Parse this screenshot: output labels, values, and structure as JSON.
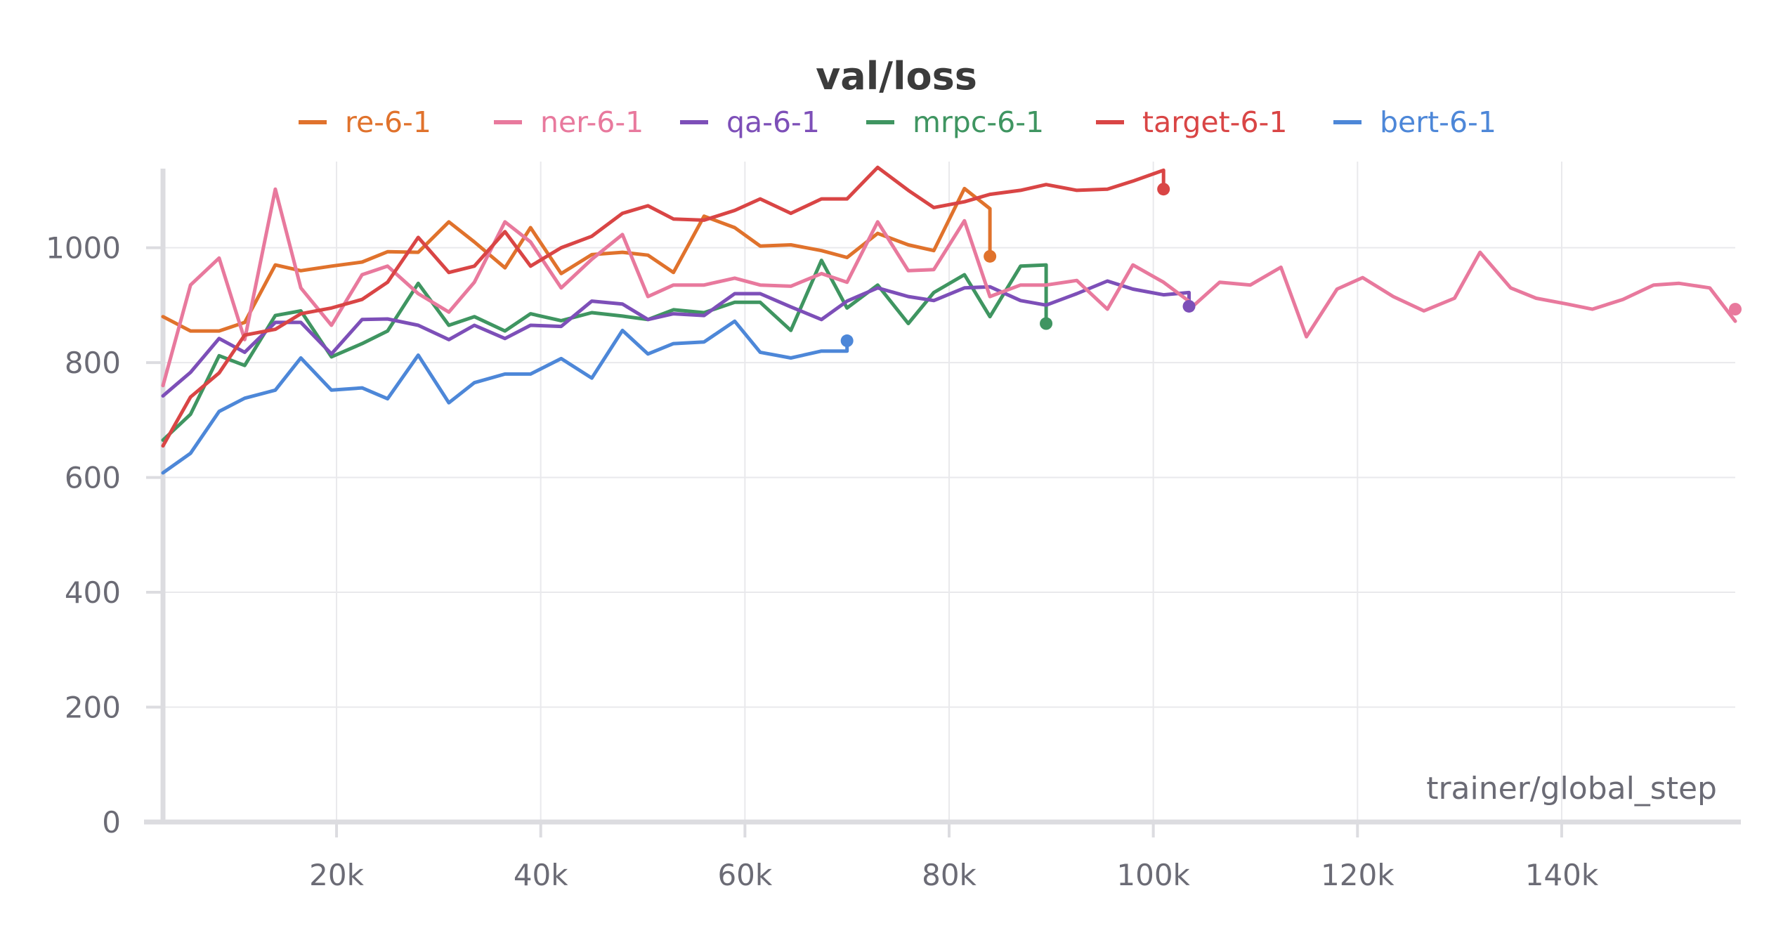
{
  "chart_data": {
    "type": "line",
    "title": "val/loss",
    "xlabel": "trainer/global_step",
    "ylabel": "",
    "xlim": [
      3000,
      157000
    ],
    "ylim": [
      0,
      1150
    ],
    "x_ticks": [
      {
        "value": 20000,
        "label": "20k"
      },
      {
        "value": 40000,
        "label": "40k"
      },
      {
        "value": 60000,
        "label": "60k"
      },
      {
        "value": 80000,
        "label": "80k"
      },
      {
        "value": 100000,
        "label": "100k"
      },
      {
        "value": 120000,
        "label": "120k"
      },
      {
        "value": 140000,
        "label": "140k"
      }
    ],
    "y_ticks": [
      {
        "value": 0,
        "label": "0"
      },
      {
        "value": 200,
        "label": "200"
      },
      {
        "value": 400,
        "label": "400"
      },
      {
        "value": 600,
        "label": "600"
      },
      {
        "value": 800,
        "label": "800"
      },
      {
        "value": 1000,
        "label": "1000"
      }
    ],
    "grid": true,
    "legend_position": "top",
    "series": [
      {
        "name": "re-6-1",
        "color": "#e0722c",
        "x": [
          3000,
          5700,
          8500,
          11000,
          14000,
          16500,
          19500,
          22500,
          25000,
          28000,
          31000,
          33500,
          36500,
          39000,
          42000,
          45000,
          48000,
          50500,
          53000,
          56000,
          59000,
          61500,
          64500,
          67500,
          70000,
          73000,
          76000,
          78500,
          81500,
          84000,
          84000
        ],
        "y": [
          880,
          855,
          855,
          870,
          970,
          960,
          968,
          975,
          993,
          992,
          1045,
          1010,
          965,
          1035,
          955,
          988,
          992,
          987,
          957,
          1055,
          1035,
          1003,
          1005,
          995,
          983,
          1025,
          1005,
          995,
          1103,
          1068,
          985
        ]
      },
      {
        "name": "ner-6-1",
        "color": "#e8799d",
        "x": [
          3000,
          5700,
          8500,
          11000,
          14000,
          16500,
          19500,
          22500,
          25000,
          28000,
          31000,
          33500,
          36500,
          39000,
          42000,
          45000,
          48000,
          50500,
          53000,
          56000,
          59000,
          61500,
          64500,
          67500,
          70000,
          73000,
          76000,
          78500,
          81500,
          84000,
          87000,
          89500,
          92500,
          95500,
          98000,
          101000,
          104000,
          106500,
          109500,
          112500,
          115000,
          118000,
          120500,
          123500,
          126500,
          129500,
          132000,
          135000,
          137500,
          140500,
          143000,
          146000,
          149000,
          151500,
          154500,
          157000
        ],
        "y": [
          760,
          935,
          982,
          840,
          1102,
          930,
          865,
          953,
          968,
          920,
          888,
          940,
          1045,
          1010,
          930,
          980,
          1023,
          915,
          935,
          935,
          947,
          935,
          933,
          955,
          940,
          1045,
          960,
          962,
          1047,
          915,
          935,
          935,
          943,
          893,
          970,
          940,
          900,
          940,
          935,
          966,
          845,
          928,
          948,
          915,
          890,
          912,
          992,
          930,
          912,
          902,
          893,
          910,
          935,
          938,
          930,
          872
        ],
        "end_marker": 893
      },
      {
        "name": "qa-6-1",
        "color": "#7d4fb8",
        "x": [
          3000,
          5700,
          8500,
          11000,
          14000,
          16500,
          19500,
          22500,
          25000,
          28000,
          31000,
          33500,
          36500,
          39000,
          42000,
          45000,
          48000,
          50500,
          53000,
          56000,
          59000,
          61500,
          64500,
          67500,
          70000,
          73000,
          76000,
          78500,
          81500,
          84000,
          87000,
          89500,
          92500,
          95500,
          98000,
          101000,
          103500,
          103500
        ],
        "y": [
          742,
          783,
          842,
          818,
          870,
          870,
          815,
          875,
          876,
          865,
          840,
          865,
          842,
          865,
          863,
          907,
          902,
          875,
          885,
          882,
          920,
          920,
          897,
          875,
          907,
          930,
          915,
          908,
          930,
          932,
          908,
          900,
          920,
          942,
          928,
          918,
          922,
          898
        ]
      },
      {
        "name": "mrpc-6-1",
        "color": "#3f9561",
        "x": [
          3000,
          5700,
          8500,
          11000,
          14000,
          16500,
          19500,
          22500,
          25000,
          28000,
          31000,
          33500,
          36500,
          39000,
          42000,
          45000,
          48000,
          50500,
          53000,
          56000,
          59000,
          61500,
          64500,
          67500,
          70000,
          73000,
          76000,
          78500,
          81500,
          84000,
          87000,
          89500,
          89500
        ],
        "y": [
          665,
          710,
          812,
          795,
          882,
          890,
          810,
          833,
          855,
          938,
          865,
          880,
          855,
          885,
          873,
          887,
          881,
          875,
          892,
          887,
          905,
          905,
          856,
          978,
          895,
          935,
          868,
          922,
          953,
          880,
          968,
          970,
          868
        ]
      },
      {
        "name": "target-6-1",
        "color": "#d94545",
        "x": [
          3000,
          5700,
          8500,
          11000,
          14000,
          16500,
          19500,
          22500,
          25000,
          28000,
          31000,
          33500,
          36500,
          39000,
          42000,
          45000,
          48000,
          50500,
          53000,
          56000,
          59000,
          61500,
          64500,
          67500,
          70000,
          73000,
          76000,
          78500,
          81500,
          84000,
          87000,
          89500,
          92500,
          95500,
          98000,
          101000,
          101000
        ],
        "y": [
          655,
          740,
          782,
          848,
          858,
          885,
          895,
          910,
          940,
          1018,
          957,
          968,
          1028,
          968,
          1000,
          1020,
          1060,
          1073,
          1050,
          1048,
          1065,
          1085,
          1060,
          1085,
          1085,
          1140,
          1100,
          1070,
          1080,
          1093,
          1100,
          1110,
          1100,
          1102,
          1116,
          1135,
          1102
        ]
      },
      {
        "name": "bert-6-1",
        "color": "#4d87d8",
        "x": [
          3000,
          5700,
          8500,
          11000,
          14000,
          16500,
          19500,
          22500,
          25000,
          28000,
          31000,
          33500,
          36500,
          39000,
          42000,
          45000,
          48000,
          50500,
          53000,
          56000,
          59000,
          61500,
          64500,
          67500,
          70000,
          70000
        ],
        "y": [
          608,
          642,
          715,
          738,
          752,
          808,
          752,
          756,
          737,
          813,
          730,
          765,
          780,
          780,
          807,
          773,
          856,
          815,
          833,
          836,
          872,
          818,
          808,
          820,
          820,
          838
        ]
      }
    ]
  }
}
